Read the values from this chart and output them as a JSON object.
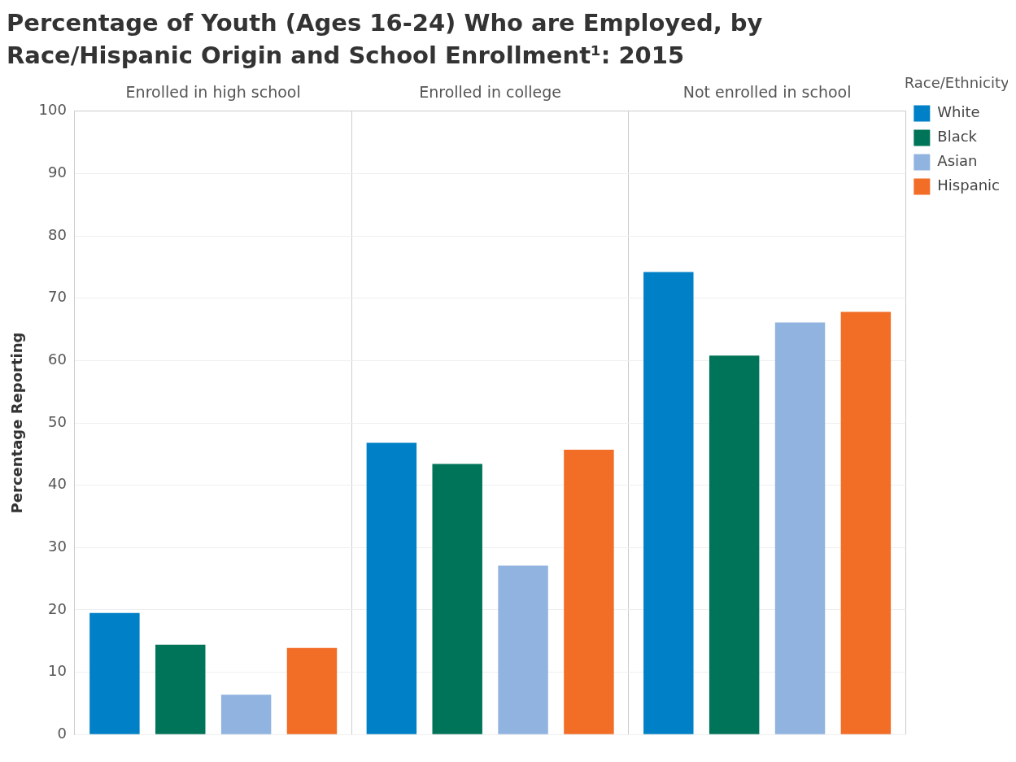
{
  "chart_data": {
    "type": "bar",
    "title": "Percentage of Youth (Ages 16-24) Who are Employed, by Race/Hispanic Origin and School Enrollment¹: 2015",
    "ylabel": "Percentage Reporting",
    "legend_title": "Race/Ethnicity",
    "categories": [
      "Enrolled in high school",
      "Enrolled in college",
      "Not enrolled in school"
    ],
    "series": [
      {
        "name": "White",
        "color": "#0080c6",
        "values": [
          19.5,
          46.8,
          74.2
        ]
      },
      {
        "name": "Black",
        "color": "#007458",
        "values": [
          14.4,
          43.4,
          60.8
        ]
      },
      {
        "name": "Asian",
        "color": "#91b3e0",
        "values": [
          6.4,
          27.1,
          66.1
        ]
      },
      {
        "name": "Hispanic",
        "color": "#f26d26",
        "values": [
          13.9,
          45.7,
          67.8
        ]
      }
    ],
    "ylim": [
      0,
      100
    ],
    "yticks": [
      0,
      10,
      20,
      30,
      40,
      50,
      60,
      70,
      80,
      90,
      100
    ],
    "grid": true,
    "legend": "top right"
  }
}
